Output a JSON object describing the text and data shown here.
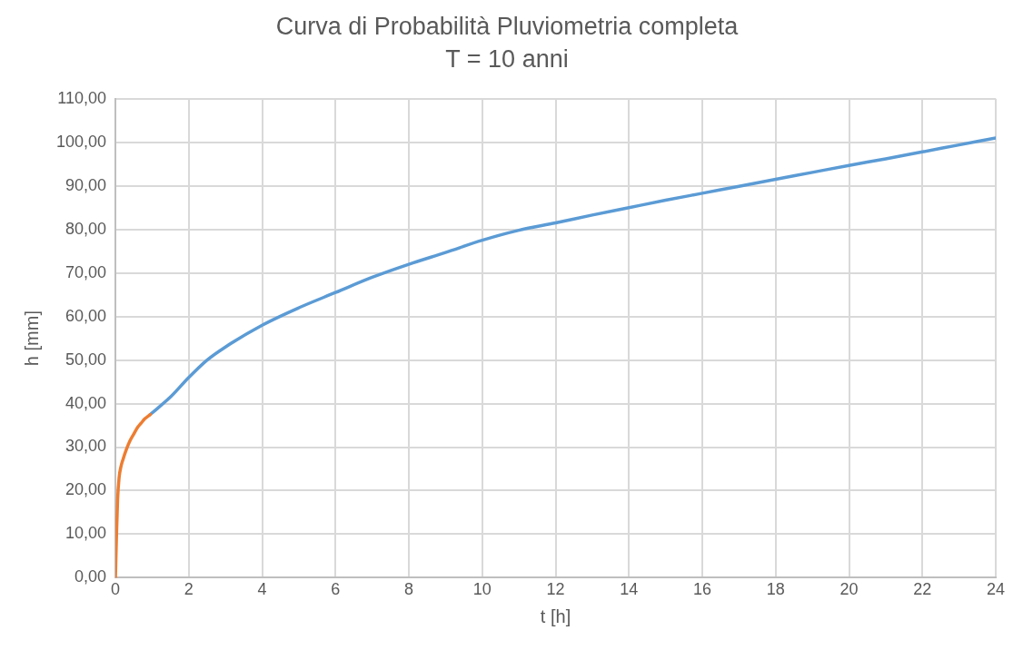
{
  "chart_data": {
    "type": "line",
    "title": "Curva di Probabilità Pluviometria completa",
    "subtitle": "T = 10 anni",
    "xlabel": "t [h]",
    "ylabel": "h [mm]",
    "series": [
      {
        "color": "#ed7d31",
        "x": [
          0,
          0.03,
          0.06,
          0.1,
          0.15,
          0.2,
          0.3,
          0.4,
          0.5,
          0.6,
          0.7,
          0.8,
          0.95
        ],
        "values": [
          0,
          10,
          18,
          23,
          25.5,
          27,
          29.5,
          31.5,
          33,
          34.5,
          35.5,
          36.5,
          37.5
        ]
      },
      {
        "color": "#5b9bd5",
        "x": [
          0.95,
          1.5,
          2,
          2.5,
          3,
          4,
          5,
          6,
          7,
          8,
          9,
          10,
          11,
          12,
          13,
          14,
          15,
          16,
          17,
          18,
          19,
          20,
          21,
          22,
          23,
          24
        ],
        "values": [
          37.5,
          41.5,
          46,
          50,
          53,
          58,
          62,
          65.5,
          69,
          72,
          74.7,
          77.5,
          79.8,
          81.5,
          83.3,
          85,
          86.7,
          88.3,
          89.9,
          91.5,
          93.1,
          94.7,
          96.2,
          97.8,
          99.4,
          101
        ]
      }
    ],
    "xlim": [
      0,
      24
    ],
    "xticks": [
      0,
      2,
      4,
      6,
      8,
      10,
      12,
      14,
      16,
      18,
      20,
      22,
      24
    ],
    "ylim": [
      0,
      110
    ],
    "yticks": [
      {
        "value": 0,
        "label": "0,00"
      },
      {
        "value": 10,
        "label": "10,00"
      },
      {
        "value": 20,
        "label": "20,00"
      },
      {
        "value": 30,
        "label": "30,00"
      },
      {
        "value": 40,
        "label": "40,00"
      },
      {
        "value": 50,
        "label": "50,00"
      },
      {
        "value": 60,
        "label": "60,00"
      },
      {
        "value": 70,
        "label": "70,00"
      },
      {
        "value": 80,
        "label": "80,00"
      },
      {
        "value": 90,
        "label": "90,00"
      },
      {
        "value": 100,
        "label": "100,00"
      },
      {
        "value": 110,
        "label": "110,00"
      }
    ],
    "grid": true,
    "legend": false,
    "marker": "none",
    "line_style": "solid"
  }
}
